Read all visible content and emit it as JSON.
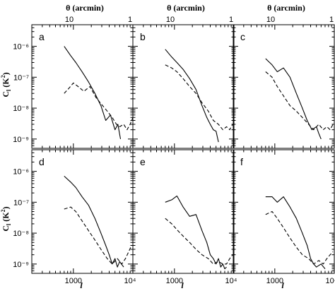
{
  "figure": {
    "top_axis_label": "θ (arcmin)",
    "ylabel": "C",
    "ylabel_sub": "l",
    "ylabel_unit": "(K",
    "ylabel_unit_exp": "2",
    "ylabel_unit_close": ")",
    "xlabel": "l"
  },
  "chart_data": [
    {
      "type": "line",
      "panel": "a",
      "xscale": "log",
      "yscale": "log",
      "xlim": [
        200,
        10000
      ],
      "ylim": [
        5e-10,
        5e-06
      ],
      "x_ticks": [
        "1000",
        "10⁴"
      ],
      "y_ticks": [
        "10⁻⁹",
        "10⁻⁸",
        "10⁻⁷",
        "10⁻⁶"
      ],
      "top_ticks": [
        "10",
        "1"
      ],
      "series": [
        {
          "style": "solid",
          "x": [
            700,
            900,
            1100,
            1400,
            1800,
            2300,
            2900,
            3500,
            4200,
            5000,
            5600,
            6200
          ],
          "y": [
            1e-06,
            5e-07,
            3e-07,
            1.5e-07,
            7e-08,
            3e-08,
            1.2e-08,
            4e-09,
            6e-09,
            2e-09,
            3e-09,
            1e-09
          ]
        },
        {
          "style": "dashed",
          "x": [
            700,
            850,
            1000,
            1200,
            1500,
            1900,
            2400,
            3000,
            3700,
            4500,
            5300,
            6000,
            7000,
            8000,
            9000,
            10000
          ],
          "y": [
            3e-08,
            4.5e-08,
            6.5e-08,
            5e-08,
            3.5e-08,
            5e-08,
            2.2e-08,
            1.3e-08,
            8e-09,
            5e-09,
            3e-09,
            2.5e-09,
            3e-09,
            2e-09,
            3e-09,
            5e-09
          ]
        }
      ]
    },
    {
      "type": "line",
      "panel": "b",
      "xscale": "log",
      "yscale": "log",
      "xlim": [
        200,
        10000
      ],
      "ylim": [
        5e-10,
        5e-06
      ],
      "x_ticks": [
        "1000",
        "10⁴"
      ],
      "y_ticks": [],
      "top_ticks": [
        "10",
        "1"
      ],
      "series": [
        {
          "style": "solid",
          "x": [
            700,
            900,
            1100,
            1400,
            1800,
            2300,
            2900,
            3500,
            4000,
            4500,
            5000,
            5500
          ],
          "y": [
            8e-07,
            4.5e-07,
            3e-07,
            1.8e-07,
            9e-08,
            4e-08,
            1.2e-08,
            5e-09,
            3e-09,
            2e-09,
            1.8e-09,
            8e-10
          ]
        },
        {
          "style": "dashed",
          "x": [
            700,
            900,
            1100,
            1400,
            1800,
            2300,
            2900,
            3700,
            4500,
            5500,
            6500,
            7500,
            8500,
            9500
          ],
          "y": [
            2.5e-07,
            2e-07,
            1.5e-07,
            9e-08,
            5e-08,
            3e-08,
            1.5e-08,
            8e-09,
            4e-09,
            3e-09,
            2e-09,
            2.5e-09,
            2e-09,
            3e-09
          ]
        }
      ]
    },
    {
      "type": "line",
      "panel": "c",
      "xscale": "log",
      "yscale": "log",
      "xlim": [
        200,
        10000
      ],
      "ylim": [
        5e-10,
        5e-06
      ],
      "x_ticks": [
        "1000",
        "10⁴"
      ],
      "y_ticks": [],
      "top_ticks": [
        "10",
        "1"
      ],
      "series": [
        {
          "style": "solid",
          "x": [
            700,
            900,
            1100,
            1400,
            1800,
            2300,
            2900,
            3500,
            4200,
            5000,
            5500,
            6000
          ],
          "y": [
            4e-07,
            2.5e-07,
            1.5e-07,
            2e-07,
            1e-07,
            3e-08,
            1e-08,
            4e-09,
            2e-09,
            2.5e-09,
            1.5e-09,
            1e-09
          ]
        },
        {
          "style": "dashed",
          "x": [
            700,
            900,
            1100,
            1400,
            1800,
            2300,
            2900,
            3700,
            4500,
            5500,
            6500,
            7500,
            8500,
            9500
          ],
          "y": [
            1.5e-07,
            1e-07,
            5e-08,
            2.5e-08,
            1.2e-08,
            8e-09,
            5e-09,
            3e-09,
            2e-09,
            3e-09,
            2e-09,
            2.5e-09,
            2e-09,
            3e-09
          ]
        }
      ]
    },
    {
      "type": "line",
      "panel": "d",
      "xscale": "log",
      "yscale": "log",
      "xlim": [
        200,
        10000
      ],
      "ylim": [
        5e-10,
        5e-06
      ],
      "x_ticks": [
        "1000",
        "10⁴"
      ],
      "y_ticks": [
        "10⁻⁹",
        "10⁻⁸",
        "10⁻⁷",
        "10⁻⁶"
      ],
      "top_ticks": [],
      "series": [
        {
          "style": "solid",
          "x": [
            700,
            900,
            1100,
            1400,
            1800,
            2300,
            2900,
            3500,
            4000,
            4500,
            5000,
            5500,
            6000,
            7000
          ],
          "y": [
            7e-07,
            4.5e-07,
            3e-07,
            1.5e-07,
            8e-08,
            3e-08,
            1e-08,
            4e-09,
            2e-09,
            1e-09,
            1.5e-09,
            8e-10,
            1.2e-09,
            8e-10
          ]
        },
        {
          "style": "dashed",
          "x": [
            700,
            900,
            1100,
            1400,
            1800,
            2300,
            2900,
            3700,
            4500,
            5500,
            6500,
            7500,
            8500,
            9500
          ],
          "y": [
            6e-08,
            7e-08,
            5e-08,
            2.5e-08,
            1.2e-08,
            6e-09,
            3e-09,
            1.5e-09,
            1e-09,
            1.5e-09,
            1e-09,
            1.5e-09,
            2.5e-09,
            4e-09
          ]
        }
      ]
    },
    {
      "type": "line",
      "panel": "e",
      "xscale": "log",
      "yscale": "log",
      "xlim": [
        200,
        10000
      ],
      "ylim": [
        5e-10,
        5e-06
      ],
      "x_ticks": [
        "1000",
        "10⁴"
      ],
      "y_ticks": [],
      "top_ticks": [],
      "series": [
        {
          "style": "solid",
          "x": [
            700,
            900,
            1100,
            1400,
            1800,
            2300,
            2900,
            3500,
            4000,
            4500,
            5000,
            5500,
            6000,
            6500,
            7000,
            7500
          ],
          "y": [
            1e-07,
            1.2e-07,
            1.6e-07,
            7e-08,
            3.5e-08,
            4e-08,
            1.2e-08,
            5e-09,
            2e-09,
            1.5e-09,
            1e-09,
            1.5e-09,
            8e-10,
            1e-09,
            7e-10,
            8e-10
          ]
        },
        {
          "style": "dashed",
          "x": [
            700,
            900,
            1100,
            1400,
            1800,
            2300,
            2900,
            3700,
            4500,
            5500,
            6500,
            7500,
            8500,
            9500
          ],
          "y": [
            3e-08,
            2e-08,
            1.3e-08,
            8e-09,
            5e-09,
            3e-09,
            2e-09,
            1.5e-09,
            1e-09,
            1.2e-09,
            1e-09,
            1e-09,
            1.5e-09,
            2e-09
          ]
        }
      ]
    },
    {
      "type": "line",
      "panel": "f",
      "xscale": "log",
      "yscale": "log",
      "xlim": [
        200,
        10000
      ],
      "ylim": [
        5e-10,
        5e-06
      ],
      "x_ticks": [
        "1000",
        "10⁴"
      ],
      "y_ticks": [],
      "top_ticks": [],
      "series": [
        {
          "style": "solid",
          "x": [
            700,
            900,
            1100,
            1400,
            1800,
            2300,
            2900,
            3500,
            4000,
            4500,
            5000,
            6000,
            7000
          ],
          "y": [
            1.5e-07,
            1.5e-07,
            1e-07,
            1.5e-07,
            7e-08,
            3e-08,
            1e-08,
            4e-09,
            1.5e-09,
            1e-09,
            8e-10,
            1e-09,
            7e-10
          ]
        },
        {
          "style": "dashed",
          "x": [
            700,
            900,
            1100,
            1400,
            1800,
            2300,
            2900,
            3700,
            4500,
            5500,
            6500,
            7500,
            8500,
            9500
          ],
          "y": [
            4e-08,
            5e-08,
            3e-08,
            1.5e-08,
            7e-09,
            3.5e-09,
            2e-09,
            1.5e-09,
            1e-09,
            1.3e-09,
            1e-09,
            1.5e-09,
            2e-09,
            2.5e-09
          ]
        }
      ]
    }
  ]
}
